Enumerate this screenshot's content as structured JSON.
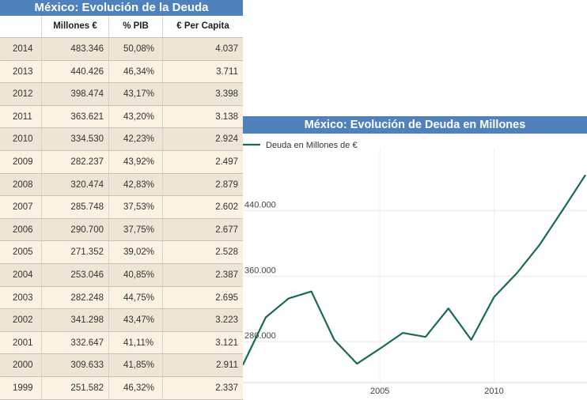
{
  "table": {
    "title": "México: Evolución de la Deuda",
    "headers": [
      "",
      "Millones €",
      "% PIB",
      "€ Per Capita"
    ],
    "rows": [
      [
        "2014",
        "483.346",
        "50,08%",
        "4.037"
      ],
      [
        "2013",
        "440.426",
        "46,34%",
        "3.711"
      ],
      [
        "2012",
        "398.474",
        "43,17%",
        "3.398"
      ],
      [
        "2011",
        "363.621",
        "43,20%",
        "3.138"
      ],
      [
        "2010",
        "334.530",
        "42,23%",
        "2.924"
      ],
      [
        "2009",
        "282.237",
        "43,92%",
        "2.497"
      ],
      [
        "2008",
        "320.474",
        "42,83%",
        "2.879"
      ],
      [
        "2007",
        "285.748",
        "37,53%",
        "2.602"
      ],
      [
        "2006",
        "290.700",
        "37,75%",
        "2.677"
      ],
      [
        "2005",
        "271.352",
        "39,02%",
        "2.528"
      ],
      [
        "2004",
        "253.046",
        "40,85%",
        "2.387"
      ],
      [
        "2003",
        "282.248",
        "44,75%",
        "2.695"
      ],
      [
        "2002",
        "341.298",
        "43,47%",
        "3.223"
      ],
      [
        "2001",
        "332.647",
        "41,11%",
        "3.121"
      ],
      [
        "2000",
        "309.633",
        "41,85%",
        "2.911"
      ],
      [
        "1999",
        "251.582",
        "46,32%",
        "2.337"
      ]
    ]
  },
  "chart_data": {
    "type": "line",
    "title": "México: Evolución de Deuda en Millones",
    "xlabel": "",
    "ylabel": "",
    "legend": "top-left",
    "grid": true,
    "x": [
      1999,
      2000,
      2001,
      2002,
      2003,
      2004,
      2005,
      2006,
      2007,
      2008,
      2009,
      2010,
      2011,
      2012,
      2013,
      2014
    ],
    "series": [
      {
        "name": "Deuda en Millones de €",
        "color": "#1a6b52",
        "values": [
          251582,
          309633,
          332647,
          341298,
          282248,
          253046,
          271352,
          290700,
          285748,
          320474,
          282237,
          334530,
          363621,
          398474,
          440426,
          483346
        ]
      }
    ],
    "x_ticks": [
      2005,
      2010
    ],
    "x_tick_labels": [
      "2005",
      "2010"
    ],
    "y_ticks": [
      280000,
      360000,
      440000
    ],
    "y_tick_labels": [
      "280.000",
      "360.000",
      "440.000"
    ],
    "ylim": [
      230000,
      505000
    ]
  }
}
